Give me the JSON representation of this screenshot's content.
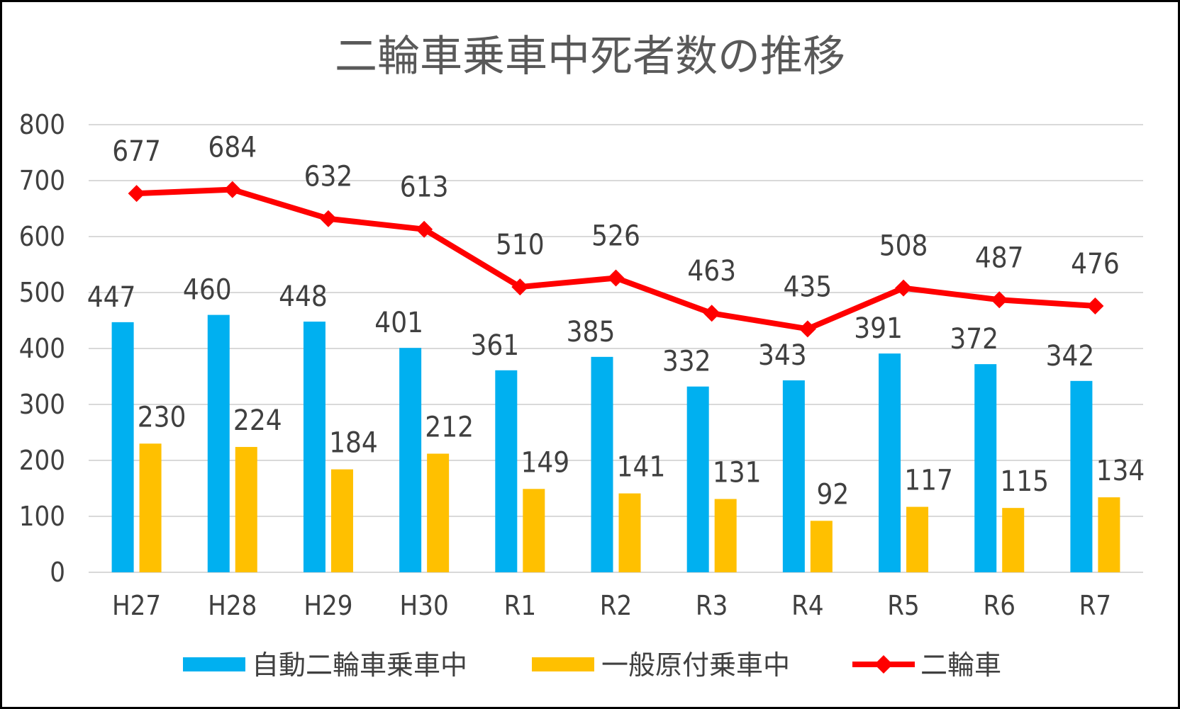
{
  "chart_data": {
    "type": "bar",
    "title": "二輪車乗車中死者数の推移",
    "categories": [
      "H27",
      "H28",
      "H29",
      "H30",
      "R1",
      "R2",
      "R3",
      "R4",
      "R5",
      "R6",
      "R7"
    ],
    "ylim": [
      0,
      800
    ],
    "yticks": [
      "0",
      "100",
      "200",
      "300",
      "400",
      "500",
      "600",
      "700",
      "800"
    ],
    "grid": true,
    "legend_position": "bottom",
    "series": [
      {
        "name": "自動二輪車乗車中",
        "type": "bar",
        "color": "#00B0F0",
        "values": [
          447,
          460,
          448,
          401,
          361,
          385,
          332,
          343,
          391,
          372,
          342
        ]
      },
      {
        "name": "一般原付乗車中",
        "type": "bar",
        "color": "#FFC000",
        "values": [
          230,
          224,
          184,
          212,
          149,
          141,
          131,
          92,
          117,
          115,
          134
        ]
      },
      {
        "name": "二輪車",
        "type": "line",
        "marker": "diamond",
        "color": "#FF0000",
        "values": [
          677,
          684,
          632,
          613,
          510,
          526,
          463,
          435,
          508,
          487,
          476
        ]
      }
    ]
  }
}
